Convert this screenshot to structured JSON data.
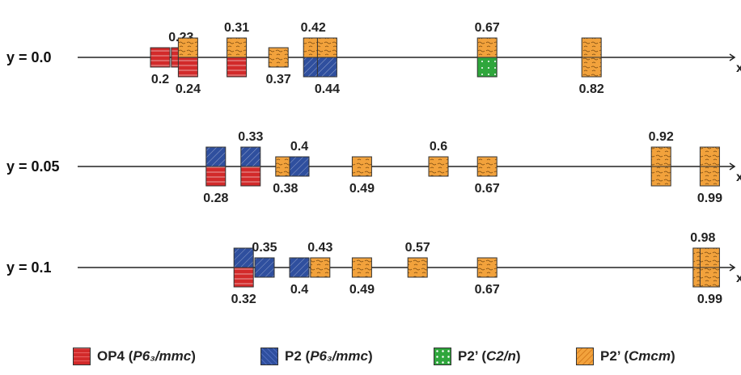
{
  "colors": {
    "OP4": "#d22a2a",
    "P2": "#2f4f9e",
    "P2g": "#2fa63c",
    "P2o": "#f2a23c"
  },
  "rows": [
    {
      "label": "y = 0.0",
      "structures": [
        {
          "x": 0.2,
          "label": "0.2",
          "boxes": [
            "OP4"
          ]
        },
        {
          "x": 0.23,
          "label": "0.23",
          "boxes": [
            "OP4"
          ]
        },
        {
          "x": 0.24,
          "label": "0.24",
          "boxes": [
            "P2o",
            "OP4"
          ]
        },
        {
          "x": 0.31,
          "label": "0.31",
          "boxes": [
            "P2o",
            "OP4"
          ]
        },
        {
          "x": 0.37,
          "label": "0.37",
          "boxes": [
            "P2o"
          ]
        },
        {
          "x": 0.42,
          "label": "0.42",
          "boxes": [
            "P2o",
            "P2"
          ]
        },
        {
          "x": 0.44,
          "label": "0.44",
          "boxes": [
            "P2o",
            "P2"
          ]
        },
        {
          "x": 0.67,
          "label": "0.67",
          "boxes": [
            "P2o",
            "P2g"
          ]
        },
        {
          "x": 0.82,
          "label": "0.82",
          "boxes": [
            "P2o",
            "P2o"
          ]
        }
      ]
    },
    {
      "label": "y = 0.05",
      "structures": [
        {
          "x": 0.28,
          "label": "0.28",
          "boxes": [
            "P2",
            "OP4"
          ]
        },
        {
          "x": 0.33,
          "label": "0.33",
          "boxes": [
            "P2",
            "OP4"
          ]
        },
        {
          "x": 0.38,
          "label": "0.38",
          "boxes": [
            "P2o"
          ]
        },
        {
          "x": 0.4,
          "label": "0.4",
          "boxes": [
            "P2"
          ]
        },
        {
          "x": 0.49,
          "label": "0.49",
          "boxes": [
            "P2o"
          ]
        },
        {
          "x": 0.6,
          "label": "0.6",
          "boxes": [
            "P2o"
          ]
        },
        {
          "x": 0.67,
          "label": "0.67",
          "boxes": [
            "P2o"
          ]
        },
        {
          "x": 0.92,
          "label": "0.92",
          "boxes": [
            "P2o",
            "P2o"
          ]
        },
        {
          "x": 0.99,
          "label": "0.99",
          "boxes": [
            "P2o",
            "P2o"
          ]
        }
      ]
    },
    {
      "label": "y = 0.1",
      "structures": [
        {
          "x": 0.32,
          "label": "0.32",
          "boxes": [
            "P2",
            "OP4"
          ]
        },
        {
          "x": 0.35,
          "label": "0.35",
          "boxes": [
            "P2"
          ]
        },
        {
          "x": 0.4,
          "label": "0.4",
          "boxes": [
            "P2"
          ]
        },
        {
          "x": 0.43,
          "label": "0.43",
          "boxes": [
            "P2o"
          ]
        },
        {
          "x": 0.49,
          "label": "0.49",
          "boxes": [
            "P2o"
          ]
        },
        {
          "x": 0.57,
          "label": "0.57",
          "boxes": [
            "P2o"
          ]
        },
        {
          "x": 0.67,
          "label": "0.67",
          "boxes": [
            "P2o"
          ]
        },
        {
          "x": 0.98,
          "label": "0.98",
          "boxes": [
            "P2o",
            "P2o"
          ]
        },
        {
          "x": 0.99,
          "label": "0.99",
          "boxes": [
            "P2o",
            "P2o"
          ]
        }
      ]
    }
  ],
  "axis_end_label": "x",
  "legend": [
    {
      "key": "OP4",
      "name": "OP4",
      "sg": "P6₃/mmc"
    },
    {
      "key": "P2",
      "name": "P2",
      "sg": "P6₃/mmc"
    },
    {
      "key": "P2g",
      "name": "P2’",
      "sg": "C2/n"
    },
    {
      "key": "P2o",
      "name": "P2’",
      "sg": "Cmcm"
    }
  ]
}
